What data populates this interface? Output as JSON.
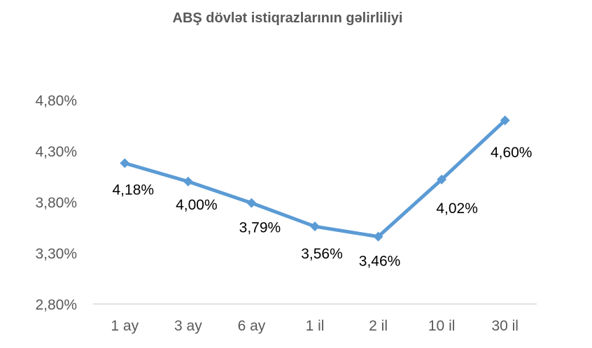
{
  "chart_data": {
    "type": "line",
    "title": "ABŞ dövlət istiqrazlarının gəlirliliyi",
    "categories": [
      "1 ay",
      "3 ay",
      "6 ay",
      "1 il",
      "2 il",
      "10 il",
      "30 il"
    ],
    "series": [
      {
        "values": [
          4.18,
          4.0,
          3.79,
          3.56,
          3.46,
          4.02,
          4.6
        ],
        "color": "#5B9BD5"
      }
    ],
    "data_labels": [
      "4,18%",
      "4,00%",
      "3,79%",
      "3,56%",
      "3,46%",
      "4,02%",
      "4,60%"
    ],
    "y_ticks": [
      2.8,
      3.3,
      3.8,
      4.3,
      4.8
    ],
    "y_tick_labels": [
      "2,80%",
      "3,30%",
      "3,80%",
      "4,30%",
      "4,80%"
    ],
    "ylim": [
      2.8,
      4.8
    ],
    "xlabel": "",
    "ylabel": "",
    "grid": false,
    "legend": "none",
    "marker": "diamond"
  }
}
